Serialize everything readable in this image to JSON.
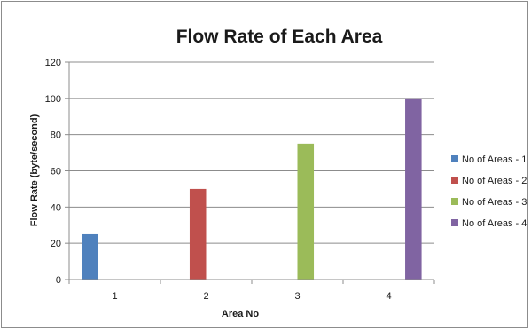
{
  "chart_data": {
    "type": "bar",
    "title": "Flow Rate of Each Area",
    "xlabel": "Area No",
    "ylabel": "Flow Rate (byte/second)",
    "categories": [
      "1",
      "2",
      "3",
      "4"
    ],
    "ylim": [
      0,
      120
    ],
    "yticks": [
      "0",
      "20",
      "40",
      "60",
      "80",
      "100",
      "120"
    ],
    "grid": true,
    "legend_position": "right",
    "series": [
      {
        "name": "No of Areas - 1",
        "color": "#4F81BD",
        "values": [
          25,
          null,
          null,
          null
        ]
      },
      {
        "name": "No of Areas - 2",
        "color": "#C0504D",
        "values": [
          null,
          50,
          null,
          null
        ]
      },
      {
        "name": "No of Areas - 3",
        "color": "#9BBB59",
        "values": [
          null,
          null,
          75,
          null
        ]
      },
      {
        "name": "No of Areas - 4",
        "color": "#8064A2",
        "values": [
          null,
          null,
          null,
          100
        ]
      }
    ]
  }
}
